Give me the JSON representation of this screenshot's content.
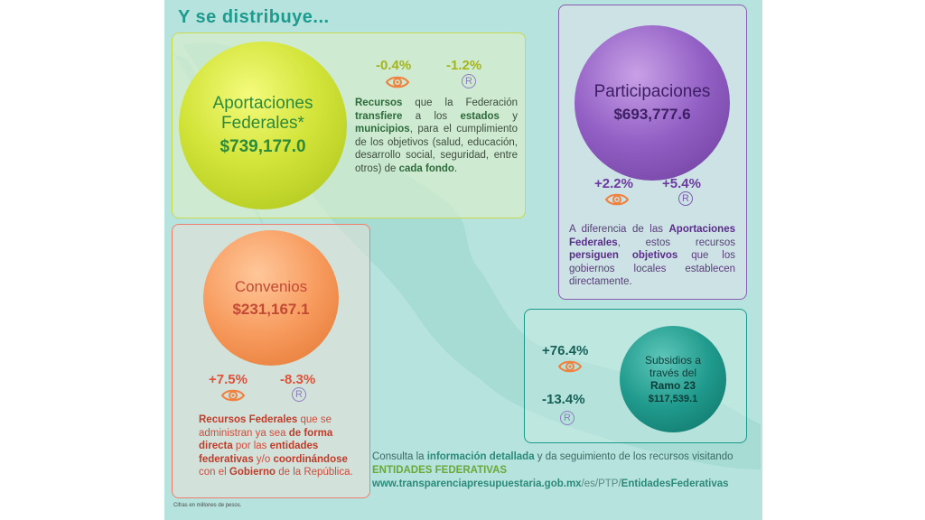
{
  "title": "Y se distribuye...",
  "aportaciones": {
    "name_line1": "Aportaciones",
    "name_line2": "Federales*",
    "value": "$739,177.0",
    "pct_eye": "-0.4%",
    "pct_r": "-1.2%",
    "desc": [
      {
        "t": "Recursos",
        "b": true
      },
      {
        "t": " que la Federación ",
        "b": false
      },
      {
        "t": "transfiere",
        "b": true
      },
      {
        "t": " a los ",
        "b": false
      },
      {
        "t": "estados",
        "b": true
      },
      {
        "t": " y ",
        "b": false
      },
      {
        "t": "municipios",
        "b": true
      },
      {
        "t": ", para el cumplimiento de los objetivos (salud, educación, desarrollo social, seguridad, entre otros) de ",
        "b": false
      },
      {
        "t": "cada fondo",
        "b": true
      },
      {
        "t": ".",
        "b": false
      }
    ]
  },
  "participaciones": {
    "name": "Participaciones",
    "value": "$693,777.6",
    "pct_eye": "+2.2%",
    "pct_r": "+5.4%",
    "desc": [
      {
        "t": "A diferencia de las ",
        "b": false
      },
      {
        "t": "Aportaciones Federales",
        "b": true
      },
      {
        "t": ", estos recursos ",
        "b": false
      },
      {
        "t": "persiguen objetivos",
        "b": true
      },
      {
        "t": " que los gobiernos locales establecen directamente.",
        "b": false
      }
    ]
  },
  "convenios": {
    "name": "Convenios",
    "value": "$231,167.1",
    "pct_eye": "+7.5%",
    "pct_r": "-8.3%",
    "desc": [
      {
        "t": "Recursos Federales",
        "b": true
      },
      {
        "t": " que se administran ya sea ",
        "b": false
      },
      {
        "t": "de forma directa",
        "b": true
      },
      {
        "t": " por las ",
        "b": false
      },
      {
        "t": "entidades federativas",
        "b": true
      },
      {
        "t": " y/o ",
        "b": false
      },
      {
        "t": "coordinándose",
        "b": true
      },
      {
        "t": " con el ",
        "b": false
      },
      {
        "t": "Gobierno",
        "b": true
      },
      {
        "t": " de la República.",
        "b": false
      }
    ]
  },
  "subsidios": {
    "name_line1": "Subsidios a",
    "name_line2": "través del",
    "name_line3": "Ramo 23",
    "value": "$117,539.1",
    "pct_eye": "+76.4%",
    "pct_r": "-13.4%"
  },
  "consulta": {
    "pre": "Consulta la ",
    "bold": "información detallada",
    "mid": " y da seguimiento de los recursos visitando",
    "entidades": "ENTIDADES FEDERATIVAS",
    "url_a": "www.transparenciapresupuestaria.gob.mx",
    "url_b": "/es/PTP/",
    "url_c": "EntidadesFederativas"
  },
  "reg_symbol": "R",
  "footnote": "Cifras en millones de pesos.",
  "colors": {
    "background": "#b6e3dd",
    "aportaciones": "#c8d94a",
    "participaciones": "#8a5db0",
    "convenios": "#ef7e6f",
    "subsidios": "#1b9a8c",
    "eye_icon": "#f0813f"
  }
}
